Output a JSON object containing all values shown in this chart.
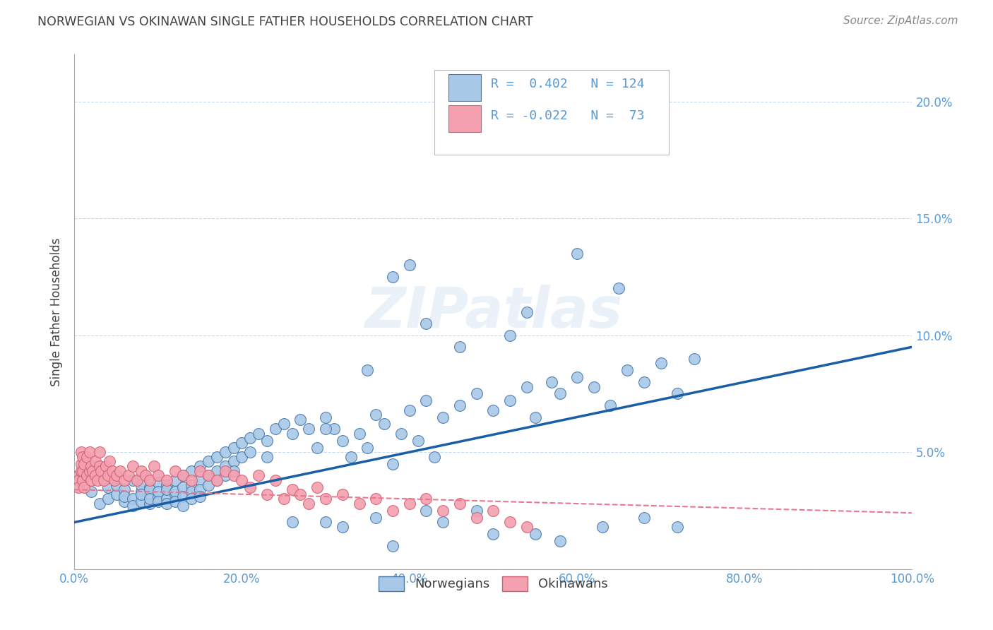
{
  "title": "NORWEGIAN VS OKINAWAN SINGLE FATHER HOUSEHOLDS CORRELATION CHART",
  "source": "Source: ZipAtlas.com",
  "ylabel": "Single Father Households",
  "xlim": [
    0,
    1.0
  ],
  "ylim": [
    0,
    0.22
  ],
  "xticks": [
    0.0,
    0.2,
    0.4,
    0.6,
    0.8,
    1.0
  ],
  "xtick_labels": [
    "0.0%",
    "20.0%",
    "40.0%",
    "60.0%",
    "80.0%",
    "100.0%"
  ],
  "yticks": [
    0.0,
    0.05,
    0.1,
    0.15,
    0.2
  ],
  "ytick_labels": [
    "",
    "5.0%",
    "10.0%",
    "15.0%",
    "20.0%"
  ],
  "blue_color": "#a8c8e8",
  "pink_color": "#f4a0b0",
  "blue_edge_color": "#4878a8",
  "pink_edge_color": "#d06070",
  "blue_line_color": "#1a5ea8",
  "pink_line_color": "#e87890",
  "title_color": "#404040",
  "axis_tick_color": "#5a9ad5",
  "watermark": "ZIPatlas",
  "blue_slope": 0.075,
  "blue_intercept": 0.02,
  "pink_slope": -0.01,
  "pink_intercept": 0.034,
  "norwegian_x": [
    0.02,
    0.03,
    0.04,
    0.04,
    0.05,
    0.05,
    0.06,
    0.06,
    0.06,
    0.07,
    0.07,
    0.07,
    0.08,
    0.08,
    0.08,
    0.08,
    0.09,
    0.09,
    0.09,
    0.09,
    0.1,
    0.1,
    0.1,
    0.1,
    0.11,
    0.11,
    0.11,
    0.11,
    0.12,
    0.12,
    0.12,
    0.12,
    0.13,
    0.13,
    0.13,
    0.13,
    0.14,
    0.14,
    0.14,
    0.14,
    0.15,
    0.15,
    0.15,
    0.15,
    0.16,
    0.16,
    0.16,
    0.17,
    0.17,
    0.17,
    0.18,
    0.18,
    0.18,
    0.19,
    0.19,
    0.19,
    0.2,
    0.2,
    0.21,
    0.21,
    0.22,
    0.23,
    0.23,
    0.24,
    0.25,
    0.26,
    0.27,
    0.28,
    0.29,
    0.3,
    0.31,
    0.32,
    0.33,
    0.34,
    0.35,
    0.36,
    0.37,
    0.38,
    0.39,
    0.4,
    0.41,
    0.42,
    0.43,
    0.44,
    0.46,
    0.48,
    0.5,
    0.52,
    0.54,
    0.55,
    0.57,
    0.58,
    0.6,
    0.62,
    0.64,
    0.66,
    0.68,
    0.7,
    0.72,
    0.74,
    0.52,
    0.54,
    0.38,
    0.4,
    0.42,
    0.35,
    0.6,
    0.65,
    0.46,
    0.3,
    0.32,
    0.55,
    0.58,
    0.63,
    0.44,
    0.5,
    0.68,
    0.72,
    0.38,
    0.42,
    0.3,
    0.36,
    0.48,
    0.26
  ],
  "norwegian_y": [
    0.033,
    0.028,
    0.035,
    0.03,
    0.032,
    0.036,
    0.029,
    0.034,
    0.031,
    0.03,
    0.038,
    0.027,
    0.033,
    0.036,
    0.029,
    0.032,
    0.035,
    0.028,
    0.034,
    0.03,
    0.031,
    0.037,
    0.033,
    0.029,
    0.036,
    0.03,
    0.034,
    0.028,
    0.038,
    0.032,
    0.033,
    0.029,
    0.04,
    0.035,
    0.031,
    0.027,
    0.042,
    0.036,
    0.033,
    0.03,
    0.044,
    0.038,
    0.034,
    0.031,
    0.046,
    0.04,
    0.036,
    0.048,
    0.042,
    0.038,
    0.05,
    0.044,
    0.04,
    0.052,
    0.046,
    0.042,
    0.054,
    0.048,
    0.056,
    0.05,
    0.058,
    0.055,
    0.048,
    0.06,
    0.062,
    0.058,
    0.064,
    0.06,
    0.052,
    0.065,
    0.06,
    0.055,
    0.048,
    0.058,
    0.052,
    0.066,
    0.062,
    0.045,
    0.058,
    0.068,
    0.055,
    0.072,
    0.048,
    0.065,
    0.07,
    0.075,
    0.068,
    0.072,
    0.078,
    0.065,
    0.08,
    0.075,
    0.082,
    0.078,
    0.07,
    0.085,
    0.08,
    0.088,
    0.075,
    0.09,
    0.1,
    0.11,
    0.125,
    0.13,
    0.105,
    0.085,
    0.135,
    0.12,
    0.095,
    0.06,
    0.018,
    0.015,
    0.012,
    0.018,
    0.02,
    0.015,
    0.022,
    0.018,
    0.01,
    0.025,
    0.02,
    0.022,
    0.025,
    0.02
  ],
  "okinawan_x": [
    0.005,
    0.005,
    0.005,
    0.008,
    0.008,
    0.008,
    0.01,
    0.01,
    0.01,
    0.012,
    0.012,
    0.015,
    0.015,
    0.018,
    0.018,
    0.02,
    0.02,
    0.022,
    0.025,
    0.025,
    0.028,
    0.03,
    0.03,
    0.032,
    0.035,
    0.038,
    0.04,
    0.042,
    0.045,
    0.048,
    0.05,
    0.055,
    0.06,
    0.065,
    0.07,
    0.075,
    0.08,
    0.085,
    0.09,
    0.095,
    0.1,
    0.11,
    0.12,
    0.13,
    0.14,
    0.15,
    0.16,
    0.17,
    0.18,
    0.19,
    0.2,
    0.21,
    0.22,
    0.23,
    0.24,
    0.25,
    0.26,
    0.27,
    0.28,
    0.29,
    0.3,
    0.32,
    0.34,
    0.36,
    0.38,
    0.4,
    0.42,
    0.44,
    0.46,
    0.48,
    0.5,
    0.52,
    0.54
  ],
  "okinawan_y": [
    0.04,
    0.038,
    0.035,
    0.042,
    0.045,
    0.05,
    0.038,
    0.042,
    0.048,
    0.035,
    0.045,
    0.04,
    0.048,
    0.042,
    0.05,
    0.038,
    0.044,
    0.042,
    0.04,
    0.046,
    0.038,
    0.044,
    0.05,
    0.042,
    0.038,
    0.044,
    0.04,
    0.046,
    0.042,
    0.038,
    0.04,
    0.042,
    0.038,
    0.04,
    0.044,
    0.038,
    0.042,
    0.04,
    0.038,
    0.044,
    0.04,
    0.038,
    0.042,
    0.04,
    0.038,
    0.042,
    0.04,
    0.038,
    0.042,
    0.04,
    0.038,
    0.035,
    0.04,
    0.032,
    0.038,
    0.03,
    0.034,
    0.032,
    0.028,
    0.035,
    0.03,
    0.032,
    0.028,
    0.03,
    0.025,
    0.028,
    0.03,
    0.025,
    0.028,
    0.022,
    0.025,
    0.02,
    0.018
  ]
}
